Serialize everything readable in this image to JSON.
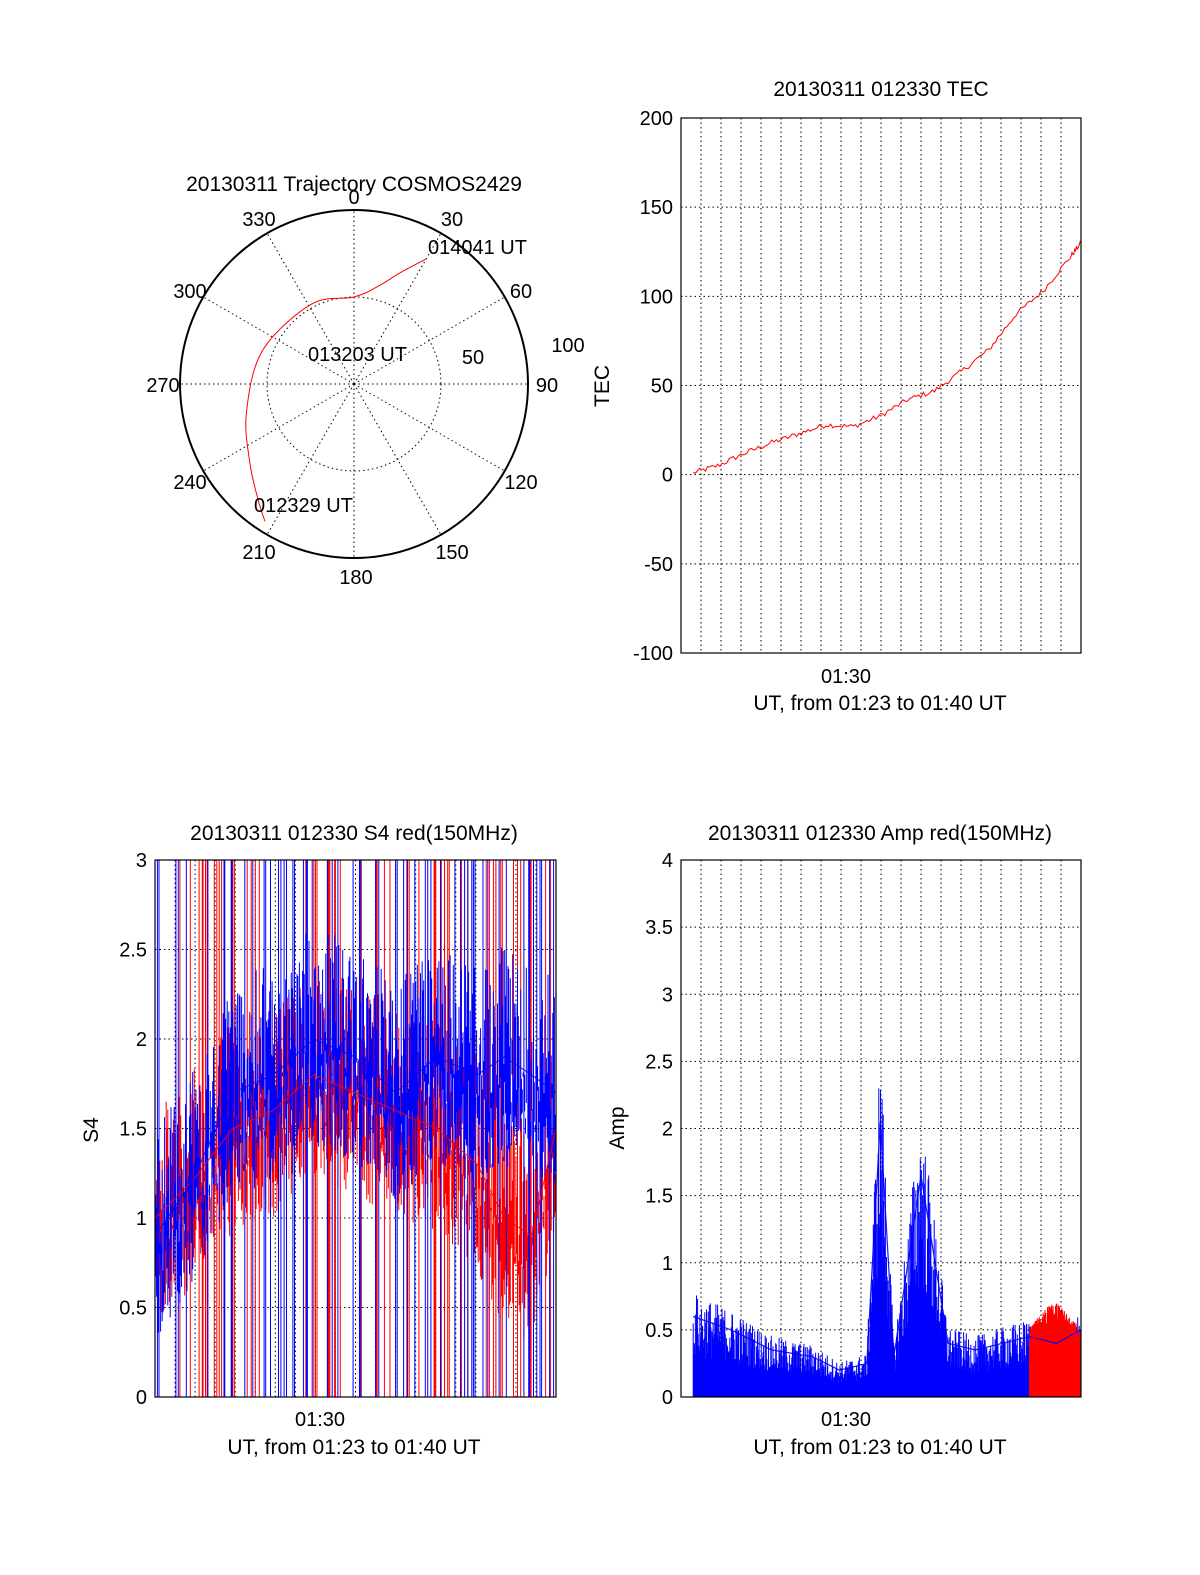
{
  "colors": {
    "red": "#ff0000",
    "blue": "#0000ff",
    "axis": "#000000"
  },
  "chart_data": [
    {
      "id": "trajectory",
      "type": "polar",
      "title": "20130311 Trajectory COSMOS2429",
      "azimuth_labels": [
        "0",
        "30",
        "60",
        "90",
        "120",
        "150",
        "180",
        "210",
        "240",
        "270",
        "300",
        "330"
      ],
      "radial_labels": [
        "50",
        "100"
      ],
      "track": {
        "color": "red",
        "points": [
          {
            "az": 213,
            "el": 6
          },
          {
            "az": 220,
            "el": 14
          },
          {
            "az": 233,
            "el": 25
          },
          {
            "az": 255,
            "el": 36
          },
          {
            "az": 290,
            "el": 44
          },
          {
            "az": 332,
            "el": 48
          },
          {
            "az": 0,
            "el": 50
          },
          {
            "az": 14,
            "el": 42
          },
          {
            "az": 23,
            "el": 30
          },
          {
            "az": 30,
            "el": 17
          }
        ]
      },
      "annotations": [
        "014041 UT",
        "013203 UT",
        "012329 UT"
      ]
    },
    {
      "id": "tec",
      "type": "line",
      "title": "20130311 012330 TEC",
      "xlabel": "UT, from 01:23 to 01:40 UT",
      "ylabel": "TEC",
      "xlim": [
        1.383,
        1.678
      ],
      "ylim": [
        -100,
        200
      ],
      "yticks": [
        "200",
        "150",
        "100",
        "50",
        "0",
        "-50",
        "-100"
      ],
      "xticks": [
        "01:30"
      ],
      "series": [
        {
          "name": "TEC",
          "color": "red",
          "x": [
            1.392,
            1.41,
            1.43,
            1.45,
            1.47,
            1.49,
            1.51,
            1.53,
            1.55,
            1.57,
            1.59,
            1.61,
            1.63,
            1.65,
            1.67,
            1.678
          ],
          "y": [
            1,
            5,
            12,
            18,
            23,
            28,
            27,
            33,
            42,
            47,
            58,
            70,
            90,
            103,
            122,
            130
          ]
        }
      ]
    },
    {
      "id": "s4",
      "type": "line",
      "title": "20130311 012330 S4 red(150MHz)",
      "xlabel": "UT, from 01:23 to 01:40 UT",
      "ylabel": "S4",
      "xlim": [
        1.383,
        1.678
      ],
      "ylim": [
        0,
        3
      ],
      "yticks": [
        "3",
        "2.5",
        "2",
        "1.5",
        "1",
        "0.5",
        "0"
      ],
      "xticks": [
        "01:30"
      ],
      "series": [
        {
          "name": "S4 red",
          "color": "red",
          "x": [
            1.383,
            1.41,
            1.44,
            1.47,
            1.5,
            1.53,
            1.56,
            1.59,
            1.62,
            1.64,
            1.66,
            1.678
          ],
          "y": [
            1.0,
            1.2,
            1.5,
            1.6,
            1.8,
            1.7,
            1.6,
            1.5,
            1.3,
            1.0,
            0.9,
            1.5
          ]
        },
        {
          "name": "S4 blue",
          "color": "blue",
          "x": [
            1.383,
            1.41,
            1.44,
            1.47,
            1.5,
            1.53,
            1.56,
            1.59,
            1.62,
            1.64,
            1.66,
            1.678
          ],
          "y": [
            0.9,
            1.2,
            1.7,
            1.8,
            2.0,
            1.9,
            1.7,
            1.9,
            1.8,
            1.9,
            1.8,
            1.7
          ]
        }
      ]
    },
    {
      "id": "amp",
      "type": "line",
      "title": "20130311 012330 Amp red(150MHz)",
      "xlabel": "UT, from 01:23 to 01:40 UT",
      "ylabel": "Amp",
      "xlim": [
        1.383,
        1.678
      ],
      "ylim": [
        0,
        4
      ],
      "yticks": [
        "4",
        "3.5",
        "3",
        "2.5",
        "2",
        "1.5",
        "1",
        "0.5",
        "0"
      ],
      "xticks": [
        "01:30"
      ],
      "series": [
        {
          "name": "Amp blue",
          "color": "blue",
          "x": [
            1.392,
            1.42,
            1.45,
            1.48,
            1.5,
            1.52,
            1.53,
            1.54,
            1.56,
            1.58,
            1.6,
            1.62,
            1.64,
            1.66,
            1.678
          ],
          "y": [
            0.6,
            0.5,
            0.35,
            0.3,
            0.2,
            0.25,
            2.05,
            0.3,
            1.65,
            0.4,
            0.35,
            0.4,
            0.45,
            0.4,
            0.5
          ]
        },
        {
          "name": "Amp red",
          "color": "red",
          "x": [
            1.64,
            1.65,
            1.66,
            1.67,
            1.678
          ],
          "y": [
            0.4,
            0.5,
            0.55,
            0.45,
            0.4
          ]
        }
      ]
    }
  ]
}
